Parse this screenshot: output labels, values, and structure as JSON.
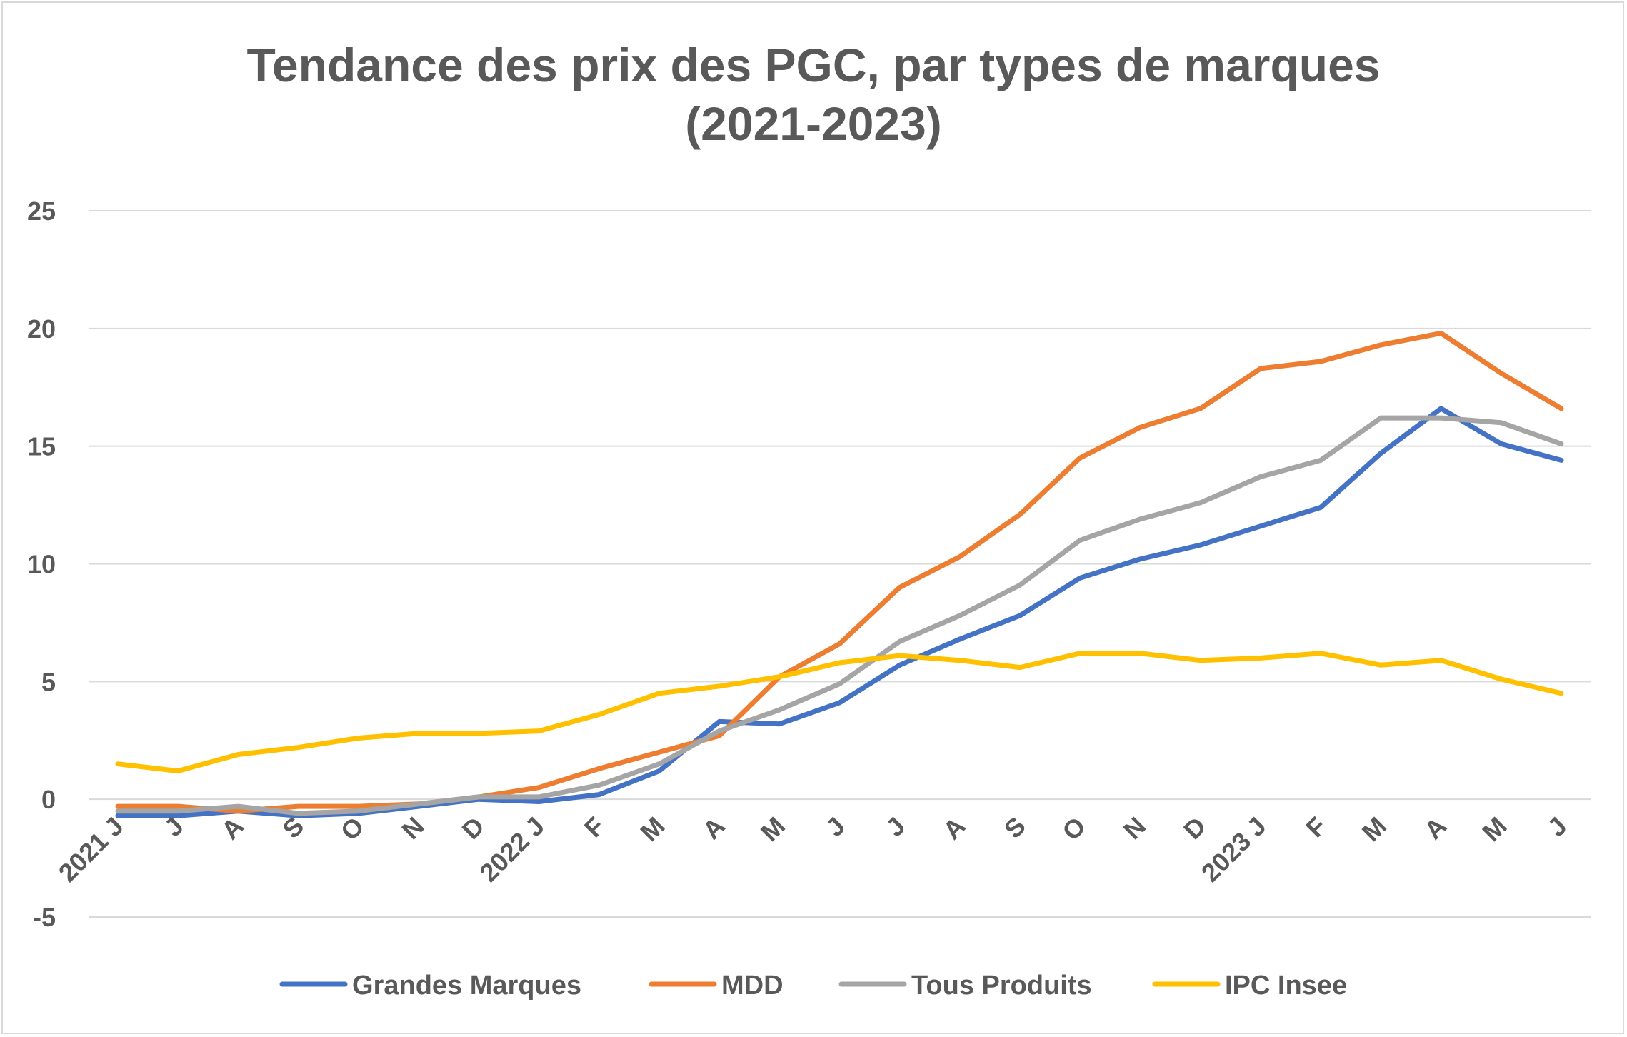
{
  "chart_data": {
    "type": "line",
    "title_line1": "Tendance des prix des PGC, par types de marques",
    "title_line2": "(2021-2023)",
    "xlabel": "",
    "ylabel": "",
    "ylim": [
      -5,
      25
    ],
    "yticks": [
      -5,
      0,
      5,
      10,
      15,
      20,
      25
    ],
    "grid": true,
    "legend_position": "bottom",
    "categories": [
      "2021 J",
      "J",
      "A",
      "S",
      "O",
      "N",
      "D",
      "2022 J",
      "F",
      "M",
      "A",
      "M",
      "J",
      "J",
      "A",
      "S",
      "O",
      "N",
      "D",
      "2023 J",
      "F",
      "M",
      "A",
      "M",
      "J"
    ],
    "series": [
      {
        "name": "Grandes Marques",
        "color": "#4472C4",
        "values": [
          -0.7,
          -0.7,
          -0.5,
          -0.7,
          -0.6,
          -0.3,
          0.0,
          -0.1,
          0.2,
          1.2,
          3.3,
          3.2,
          4.1,
          5.7,
          6.8,
          7.8,
          9.4,
          10.2,
          10.8,
          11.6,
          12.4,
          14.7,
          16.6,
          15.1,
          14.4
        ]
      },
      {
        "name": "MDD",
        "color": "#ED7D31",
        "values": [
          -0.3,
          -0.3,
          -0.5,
          -0.3,
          -0.3,
          -0.2,
          0.1,
          0.5,
          1.3,
          2.0,
          2.7,
          5.2,
          6.6,
          9.0,
          10.3,
          12.1,
          14.5,
          15.8,
          16.6,
          18.3,
          18.6,
          19.3,
          19.8,
          18.1,
          16.6
        ]
      },
      {
        "name": "Tous Produits",
        "color": "#A5A5A5",
        "values": [
          -0.5,
          -0.5,
          -0.3,
          -0.6,
          -0.5,
          -0.2,
          0.1,
          0.1,
          0.6,
          1.5,
          2.9,
          3.8,
          4.9,
          6.7,
          7.8,
          9.1,
          11.0,
          11.9,
          12.6,
          13.7,
          14.4,
          16.2,
          16.2,
          16.0,
          15.1
        ]
      },
      {
        "name": "IPC Insee",
        "color": "#FFC000",
        "values": [
          1.5,
          1.2,
          1.9,
          2.2,
          2.6,
          2.8,
          2.8,
          2.9,
          3.6,
          4.5,
          4.8,
          5.2,
          5.8,
          6.1,
          5.9,
          5.6,
          6.2,
          6.2,
          5.9,
          6.0,
          6.2,
          5.7,
          5.9,
          5.1,
          4.5
        ]
      }
    ]
  }
}
